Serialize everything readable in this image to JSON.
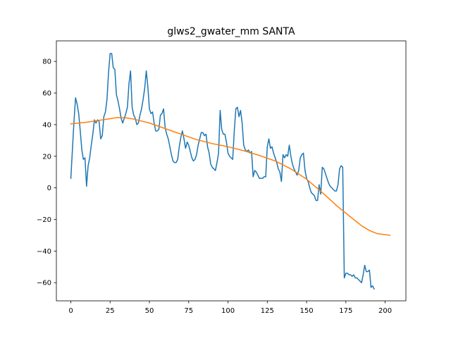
{
  "chart_data": {
    "type": "line",
    "title": "glws2_gwater_mm SANTA",
    "xlabel": "",
    "ylabel": "",
    "xlim": [
      -9.2,
      213.2
    ],
    "ylim": [
      -71.5,
      93
    ],
    "xticks": [
      0,
      25,
      50,
      75,
      100,
      125,
      150,
      175,
      200
    ],
    "yticks": [
      -60,
      -40,
      -20,
      0,
      20,
      40,
      60,
      80
    ],
    "grid": false,
    "series": [
      {
        "color": "#1f77b4",
        "points": [
          [
            0,
            6
          ],
          [
            1,
            24
          ],
          [
            2,
            42
          ],
          [
            3,
            57
          ],
          [
            4,
            53
          ],
          [
            5,
            47
          ],
          [
            6,
            36
          ],
          [
            7,
            24
          ],
          [
            8,
            18
          ],
          [
            9,
            19
          ],
          [
            10,
            1
          ],
          [
            11,
            14
          ],
          [
            12,
            19
          ],
          [
            13,
            27
          ],
          [
            14,
            34
          ],
          [
            15,
            43
          ],
          [
            16,
            41
          ],
          [
            17,
            43
          ],
          [
            18,
            42
          ],
          [
            19,
            31
          ],
          [
            20,
            33
          ],
          [
            21,
            45
          ],
          [
            22,
            48
          ],
          [
            23,
            56
          ],
          [
            24,
            73
          ],
          [
            25,
            85
          ],
          [
            26,
            85
          ],
          [
            27,
            76
          ],
          [
            28,
            75
          ],
          [
            29,
            59
          ],
          [
            30,
            55
          ],
          [
            31,
            50
          ],
          [
            32,
            44
          ],
          [
            33,
            41
          ],
          [
            34,
            44
          ],
          [
            35,
            47
          ],
          [
            36,
            51
          ],
          [
            37,
            66
          ],
          [
            38,
            74
          ],
          [
            39,
            51
          ],
          [
            40,
            46
          ],
          [
            41,
            44
          ],
          [
            42,
            40
          ],
          [
            43,
            41
          ],
          [
            44,
            46
          ],
          [
            45,
            50
          ],
          [
            46,
            56
          ],
          [
            47,
            63
          ],
          [
            48,
            74
          ],
          [
            49,
            64
          ],
          [
            50,
            50
          ],
          [
            51,
            47
          ],
          [
            52,
            48
          ],
          [
            53,
            41
          ],
          [
            54,
            36
          ],
          [
            55,
            36
          ],
          [
            56,
            37
          ],
          [
            57,
            46
          ],
          [
            58,
            47
          ],
          [
            59,
            50
          ],
          [
            60,
            38
          ],
          [
            61,
            34
          ],
          [
            62,
            31
          ],
          [
            63,
            26
          ],
          [
            64,
            21
          ],
          [
            65,
            17
          ],
          [
            66,
            16
          ],
          [
            67,
            16
          ],
          [
            68,
            18
          ],
          [
            69,
            26
          ],
          [
            70,
            32
          ],
          [
            71,
            36
          ],
          [
            72,
            31
          ],
          [
            73,
            25
          ],
          [
            74,
            29
          ],
          [
            75,
            27
          ],
          [
            76,
            23
          ],
          [
            77,
            19
          ],
          [
            78,
            17
          ],
          [
            79,
            18
          ],
          [
            80,
            21
          ],
          [
            81,
            27
          ],
          [
            82,
            31
          ],
          [
            83,
            35
          ],
          [
            84,
            35
          ],
          [
            85,
            33
          ],
          [
            86,
            34
          ],
          [
            87,
            26
          ],
          [
            88,
            22
          ],
          [
            89,
            15
          ],
          [
            90,
            13
          ],
          [
            91,
            12
          ],
          [
            92,
            11
          ],
          [
            93,
            16
          ],
          [
            94,
            22
          ],
          [
            95,
            49
          ],
          [
            96,
            37
          ],
          [
            97,
            34
          ],
          [
            98,
            34
          ],
          [
            99,
            29
          ],
          [
            100,
            22
          ],
          [
            101,
            20
          ],
          [
            102,
            19
          ],
          [
            103,
            18
          ],
          [
            104,
            36
          ],
          [
            105,
            50
          ],
          [
            106,
            51
          ],
          [
            107,
            45
          ],
          [
            108,
            49
          ],
          [
            109,
            41
          ],
          [
            110,
            27
          ],
          [
            111,
            24
          ],
          [
            112,
            23
          ],
          [
            113,
            24
          ],
          [
            114,
            22
          ],
          [
            115,
            23
          ],
          [
            116,
            7
          ],
          [
            117,
            11
          ],
          [
            118,
            10
          ],
          [
            119,
            8
          ],
          [
            120,
            6
          ],
          [
            121,
            6
          ],
          [
            122,
            6
          ],
          [
            123,
            7
          ],
          [
            124,
            7
          ],
          [
            125,
            26
          ],
          [
            126,
            31
          ],
          [
            127,
            25
          ],
          [
            128,
            26
          ],
          [
            129,
            22
          ],
          [
            130,
            19
          ],
          [
            131,
            16
          ],
          [
            132,
            12
          ],
          [
            133,
            10
          ],
          [
            134,
            4
          ],
          [
            135,
            21
          ],
          [
            136,
            19
          ],
          [
            137,
            21
          ],
          [
            138,
            20
          ],
          [
            139,
            27
          ],
          [
            140,
            20
          ],
          [
            141,
            15
          ],
          [
            142,
            12
          ],
          [
            143,
            10
          ],
          [
            144,
            8
          ],
          [
            145,
            11
          ],
          [
            146,
            19
          ],
          [
            147,
            21
          ],
          [
            148,
            22
          ],
          [
            149,
            11
          ],
          [
            150,
            6
          ],
          [
            151,
            4
          ],
          [
            152,
            0
          ],
          [
            153,
            -3
          ],
          [
            154,
            -4
          ],
          [
            155,
            -5
          ],
          [
            156,
            -8
          ],
          [
            157,
            -8
          ],
          [
            158,
            2
          ],
          [
            159,
            -4
          ],
          [
            160,
            13
          ],
          [
            161,
            12
          ],
          [
            162,
            9
          ],
          [
            163,
            6
          ],
          [
            164,
            3
          ],
          [
            165,
            1
          ],
          [
            166,
            0
          ],
          [
            167,
            -1
          ],
          [
            168,
            -2
          ],
          [
            169,
            -2
          ],
          [
            170,
            2
          ],
          [
            171,
            12
          ],
          [
            172,
            14
          ],
          [
            173,
            13
          ],
          [
            174,
            -57
          ],
          [
            175,
            -54
          ],
          [
            176,
            -54
          ],
          [
            177,
            -55
          ],
          [
            178,
            -55
          ],
          [
            179,
            -56
          ],
          [
            180,
            -55
          ],
          [
            181,
            -57
          ],
          [
            182,
            -57
          ],
          [
            183,
            -58
          ],
          [
            184,
            -59
          ],
          [
            185,
            -60
          ],
          [
            186,
            -55
          ],
          [
            187,
            -49
          ],
          [
            188,
            -53
          ],
          [
            189,
            -53
          ],
          [
            190,
            -52
          ],
          [
            191,
            -63
          ],
          [
            192,
            -62
          ],
          [
            193,
            -64
          ]
        ]
      },
      {
        "color": "#ff7f0e",
        "points": [
          [
            0,
            40.5
          ],
          [
            10,
            41.5
          ],
          [
            20,
            43
          ],
          [
            30,
            44.5
          ],
          [
            35,
            44.3
          ],
          [
            40,
            43.5
          ],
          [
            50,
            41
          ],
          [
            60,
            37.5
          ],
          [
            70,
            34
          ],
          [
            80,
            30.5
          ],
          [
            90,
            28
          ],
          [
            100,
            26
          ],
          [
            110,
            23.5
          ],
          [
            120,
            20.5
          ],
          [
            130,
            17
          ],
          [
            140,
            12
          ],
          [
            150,
            5.5
          ],
          [
            160,
            -3
          ],
          [
            170,
            -12
          ],
          [
            180,
            -20
          ],
          [
            185,
            -24
          ],
          [
            190,
            -27
          ],
          [
            195,
            -29
          ],
          [
            203,
            -30
          ]
        ]
      }
    ]
  }
}
